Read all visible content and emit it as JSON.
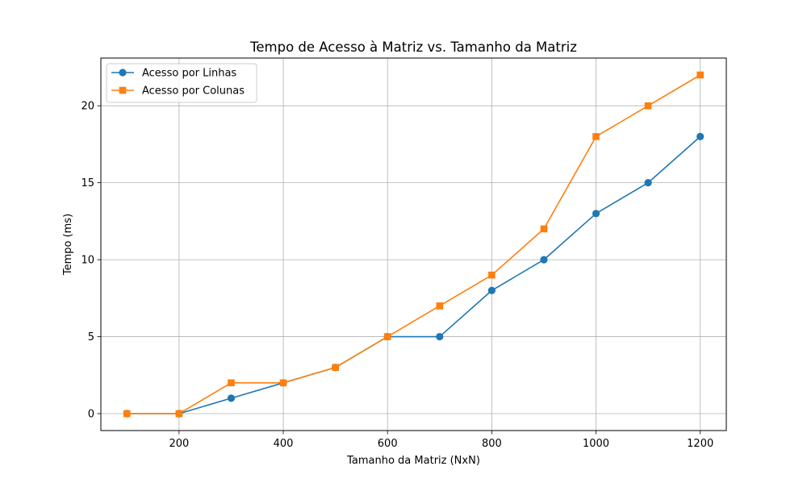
{
  "chart_data": {
    "type": "line",
    "title": "Tempo de Acesso à Matriz vs. Tamanho da Matriz",
    "xlabel": "Tamanho da Matriz (NxN)",
    "ylabel": "Tempo (ms)",
    "x": [
      100,
      200,
      300,
      400,
      500,
      600,
      700,
      800,
      900,
      1000,
      1100,
      1200
    ],
    "xlim": [
      50,
      1250
    ],
    "ylim": [
      -1.1,
      23.1
    ],
    "xticks": [
      200,
      400,
      600,
      800,
      1000,
      1200
    ],
    "yticks": [
      0,
      5,
      10,
      15,
      20
    ],
    "grid": true,
    "legend_position": "top-left",
    "series": [
      {
        "name": "Acesso por Linhas",
        "marker": "circle",
        "color": "#1f77b4",
        "values": [
          0,
          0,
          1,
          2,
          3,
          5,
          5,
          8,
          10,
          13,
          15,
          18
        ]
      },
      {
        "name": "Acesso por Colunas",
        "marker": "square",
        "color": "#ff7f0e",
        "values": [
          0,
          0,
          2,
          2,
          3,
          5,
          7,
          9,
          12,
          18,
          20,
          22
        ]
      }
    ]
  }
}
